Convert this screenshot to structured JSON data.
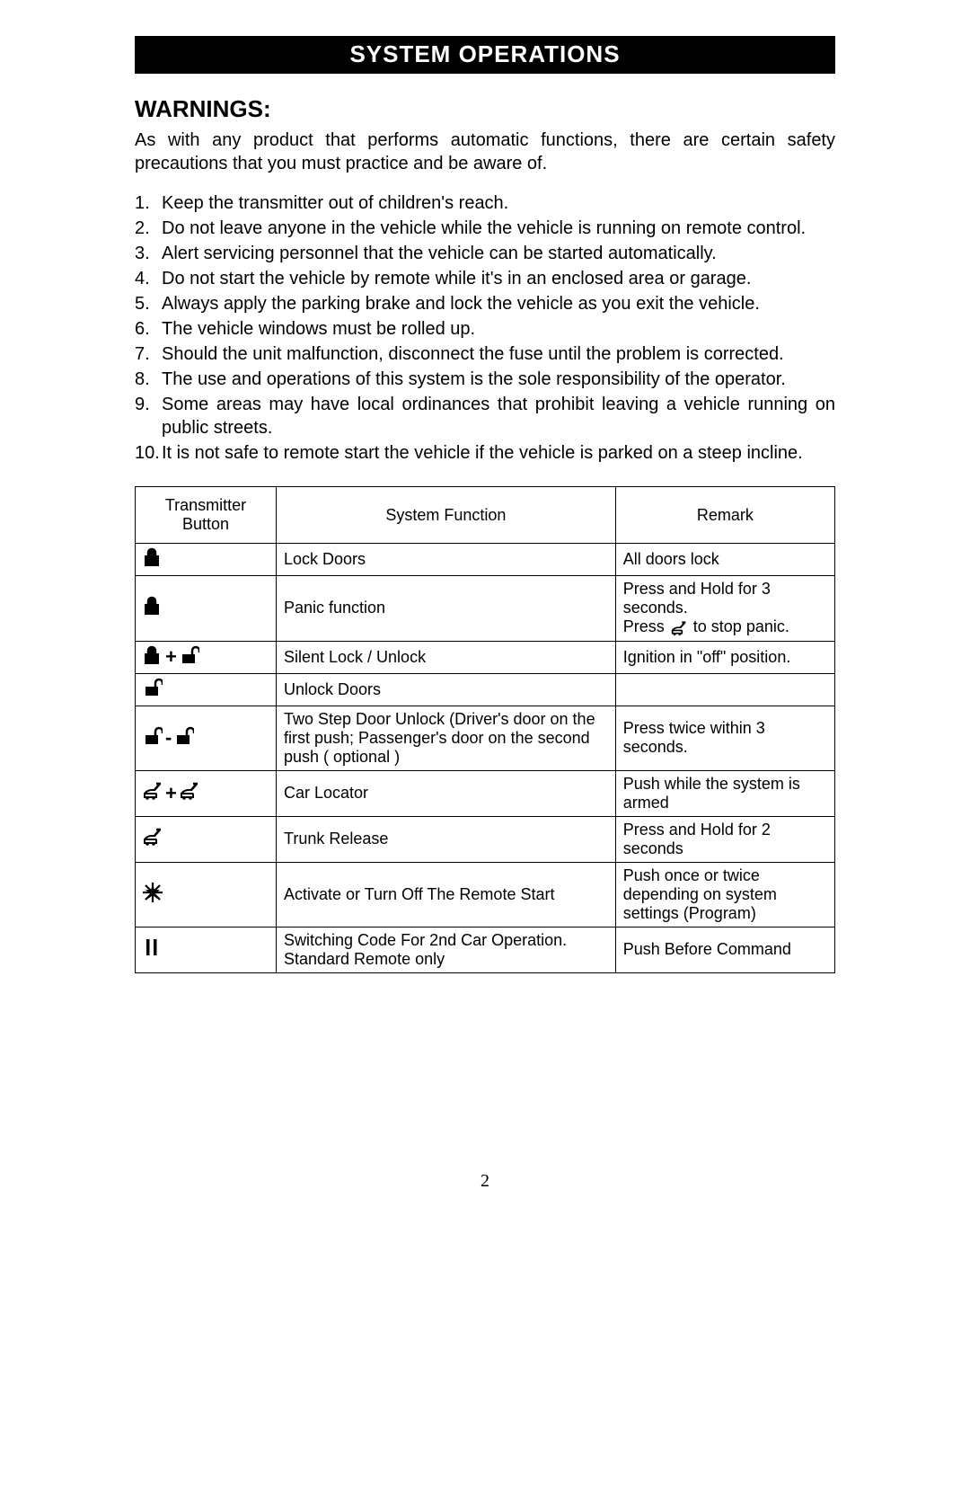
{
  "title_bar": "SYSTEM OPERATIONS",
  "heading": "WARNINGS:",
  "intro": "As with any product that performs automatic functions, there are certain safety precautions that you must practice and be aware of.",
  "warnings": [
    {
      "text": "Keep the transmitter out of children's reach.",
      "justify": false
    },
    {
      "text": "Do not leave anyone in the vehicle while the vehicle is running on remote control.",
      "justify": true
    },
    {
      "text": "Alert servicing personnel that the vehicle can be started automatically.",
      "justify": false
    },
    {
      "text": "Do not start the vehicle by remote while it's in an enclosed area or garage.",
      "justify": false
    },
    {
      "text": "Always apply the parking brake and lock the vehicle as you exit the vehicle.",
      "justify": false
    },
    {
      "text": "The vehicle windows must be rolled up.",
      "justify": false
    },
    {
      "text": "Should the unit malfunction, disconnect the fuse until the problem is corrected.",
      "justify": false
    },
    {
      "text": "The use and operations of this system is the sole responsibility of the operator.",
      "justify": false
    },
    {
      "text": "Some areas may have local ordinances that prohibit leaving a vehicle running on public streets.",
      "justify": true
    },
    {
      "text": "It is not safe to remote start the vehicle if the vehicle is parked on a steep incline.",
      "justify": false
    }
  ],
  "table": {
    "headers": {
      "button": "Transmitter Button",
      "func": "System Function",
      "remark": "Remark"
    },
    "rows": [
      {
        "icons": [
          "lock"
        ],
        "sep": null,
        "func": "Lock Doors",
        "remark_html": "All doors lock"
      },
      {
        "icons": [
          "lock"
        ],
        "sep": null,
        "func": "Panic function",
        "remark_parts": [
          "Press and Hold for 3 seconds.",
          "Press ",
          "trunk",
          " to stop panic."
        ]
      },
      {
        "icons": [
          "lock",
          "unlock"
        ],
        "sep": "+",
        "func": "Silent Lock   / Unlock",
        "remark_html": "Ignition in \"off\" position."
      },
      {
        "icons": [
          "unlock"
        ],
        "sep": null,
        "func": "Unlock Doors",
        "remark_html": ""
      },
      {
        "icons": [
          "unlock",
          "unlock"
        ],
        "sep": "-",
        "func": "Two Step Door Unlock (Driver's door on the first push; Passenger's door on the second push ( optional )",
        "remark_html": "Press twice within 3 seconds."
      },
      {
        "icons": [
          "trunk",
          "trunk"
        ],
        "sep": "+",
        "func": "Car Locator",
        "remark_html": "Push while the system is armed"
      },
      {
        "icons": [
          "trunk"
        ],
        "sep": null,
        "func": "Trunk Release",
        "remark_html": "Press and Hold for 2 seconds"
      },
      {
        "icons": [
          "star"
        ],
        "sep": null,
        "func": "Activate or Turn Off The Remote Start",
        "remark_html": "Push once or twice depending on system settings (Program)"
      },
      {
        "icons": [
          "bars"
        ],
        "sep": null,
        "func": "Switching Code For 2nd Car Operation. Standard Remote only",
        "remark_html": "Push Before Command"
      }
    ]
  },
  "page_number": "2"
}
